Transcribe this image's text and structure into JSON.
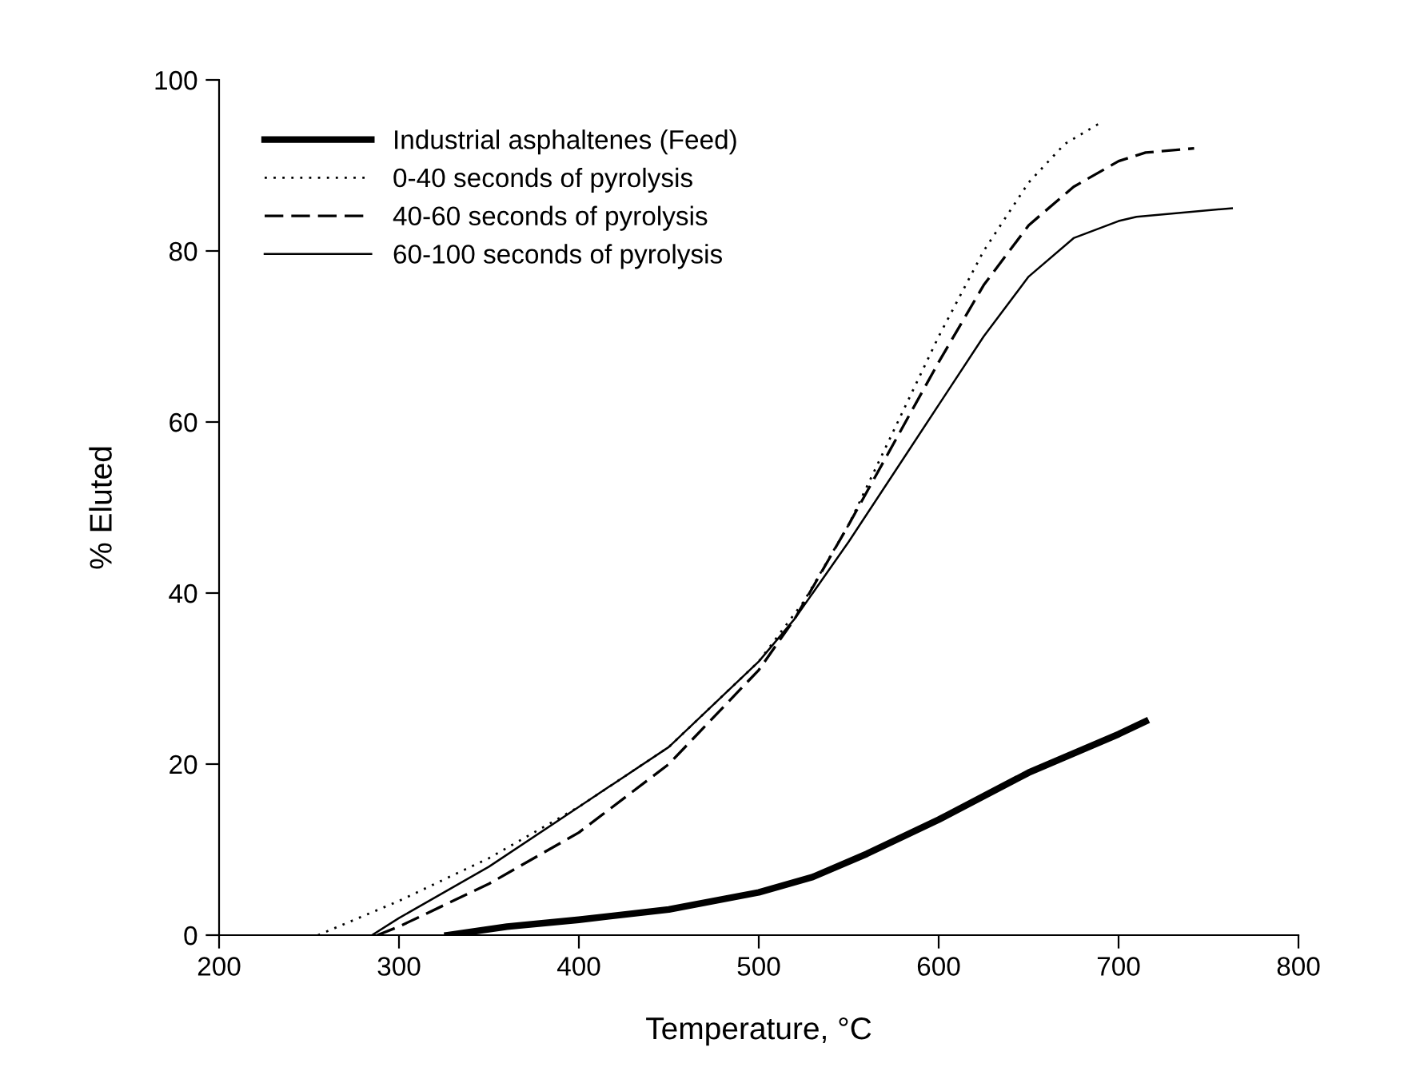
{
  "chart_data": {
    "type": "line",
    "xlabel": "Temperature, °C",
    "ylabel": "% Eluted",
    "xlim": [
      200,
      800
    ],
    "xticks": [
      200,
      300,
      400,
      500,
      600,
      700,
      800
    ],
    "ylim": [
      0,
      100
    ],
    "yticks": [
      0,
      20,
      40,
      60,
      80,
      100
    ],
    "grid": false,
    "legend": "top left",
    "marker": "none",
    "series": [
      {
        "name": "Industrial asphaltenes (Feed)",
        "color": "#000000",
        "line_style": "solid",
        "x": [
          327,
          360,
          400,
          450,
          500,
          530,
          560,
          600,
          650,
          700,
          715
        ],
        "values": [
          0,
          1,
          1.8,
          3,
          5,
          6.8,
          9.5,
          13.5,
          19,
          23.5,
          25
        ]
      },
      {
        "name": "0-40 seconds of pyrolysis",
        "color": "#000000",
        "line_style": "dotted",
        "x": [
          255,
          300,
          350,
          400,
          450,
          500,
          525,
          550,
          575,
          600,
          625,
          650,
          670,
          690
        ],
        "values": [
          0,
          4,
          9,
          15,
          22,
          32,
          39,
          48,
          59,
          70,
          80,
          88,
          92.5,
          95
        ]
      },
      {
        "name": "40-60 seconds of pyrolysis",
        "color": "#000000",
        "line_style": "dashed",
        "x": [
          288,
          300,
          350,
          400,
          450,
          500,
          520,
          550,
          575,
          600,
          625,
          650,
          675,
          700,
          715,
          742
        ],
        "values": [
          0,
          1,
          6,
          12,
          20,
          31,
          37,
          48,
          57.5,
          67,
          76,
          83,
          87.5,
          90.5,
          91.5,
          92
        ]
      },
      {
        "name": "60-100 seconds of pyrolysis",
        "color": "#000000",
        "line_style": "solid",
        "x": [
          285,
          300,
          350,
          400,
          450,
          500,
          520,
          550,
          575,
          600,
          625,
          650,
          675,
          700,
          710,
          763
        ],
        "values": [
          0,
          2,
          8,
          15,
          22,
          32,
          37,
          46,
          54,
          62,
          70,
          77,
          81.5,
          83.5,
          84,
          85
        ]
      }
    ]
  }
}
